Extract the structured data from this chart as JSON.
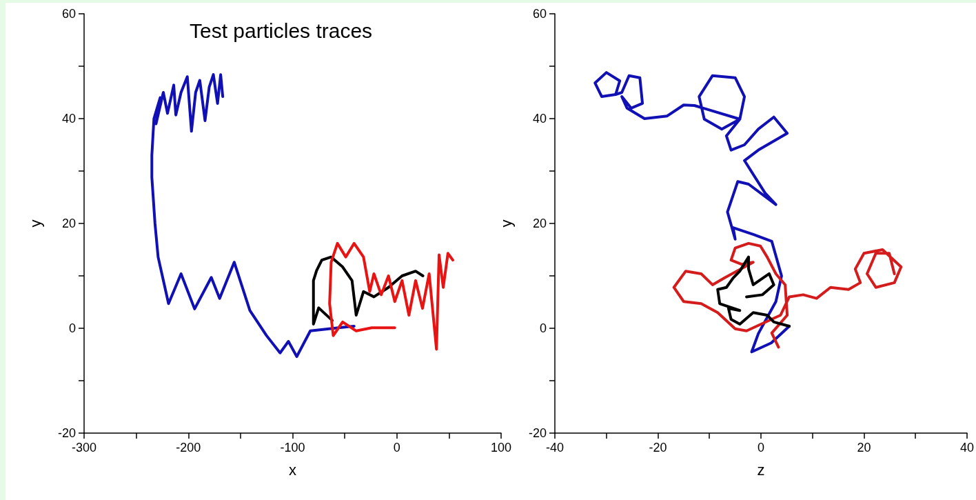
{
  "chart_data": [
    {
      "type": "line",
      "title": "Test particles traces",
      "xlabel": "x",
      "ylabel": "y",
      "xlim": [
        -300,
        100
      ],
      "ylim": [
        -20,
        60
      ],
      "xticks": [
        -300,
        {
          "value": -250,
          "label": null
        },
        -200,
        {
          "value": -150,
          "label": null
        },
        -100,
        {
          "value": -50,
          "label": null
        },
        0,
        {
          "value": 50,
          "label": null
        },
        100
      ],
      "yticks": [
        -20,
        {
          "value": -10,
          "label": null
        },
        0,
        {
          "value": 10,
          "label": null
        },
        20,
        {
          "value": 30,
          "label": null
        },
        40,
        {
          "value": 50,
          "label": null
        },
        60
      ],
      "series": [
        {
          "color": "#1010b4",
          "x": [
            -41,
            -65,
            -83,
            -96,
            -104,
            -112,
            -125,
            -141,
            -156,
            -170,
            -178,
            -194,
            -207,
            -219,
            -229,
            -232,
            -235,
            -235,
            -233,
            -227,
            -231,
            -224,
            -220,
            -214,
            -212,
            -207,
            -201,
            -197,
            -193,
            -189,
            -184,
            -180,
            -176,
            -172,
            -169,
            -167
          ],
          "values": [
            0.4,
            -0.1,
            -0.5,
            -5.4,
            -2.5,
            -4.7,
            -1.4,
            3.4,
            12.6,
            5.7,
            9.7,
            3.7,
            10.4,
            4.7,
            13.6,
            20,
            28.8,
            33,
            40,
            44,
            39,
            45,
            41,
            46.4,
            40.7,
            45,
            48,
            37.6,
            45,
            47.3,
            39.6,
            46,
            48.4,
            42.9,
            48.4,
            44.2
          ]
        },
        {
          "color": "#000000",
          "x": [
            -62,
            -75,
            -80,
            -80,
            -77,
            -72,
            -63,
            -52,
            -43,
            -39,
            -32,
            -22,
            -8,
            5,
            18,
            25
          ],
          "values": [
            1.5,
            3.9,
            0.8,
            9.1,
            11,
            13,
            13.6,
            11.7,
            9.1,
            2.5,
            7,
            6,
            7.8,
            10,
            10.9,
            10
          ]
        },
        {
          "color": "#e81414",
          "x": [
            -2,
            -24,
            -39,
            -52,
            -61,
            -64.5,
            -63,
            -57,
            -49,
            -41,
            -32,
            -26,
            -22,
            -15,
            -8,
            -2,
            5,
            11.6,
            18,
            24.6,
            31,
            38,
            40.5,
            44.5,
            49,
            53.7
          ],
          "values": [
            0.1,
            0.1,
            -0.5,
            1.2,
            -1.4,
            4.7,
            12.6,
            16.2,
            13.6,
            16.2,
            13.6,
            7,
            10.4,
            6.4,
            10,
            5.1,
            9.1,
            2.5,
            9.1,
            3.8,
            10.4,
            -4,
            14,
            7.8,
            14.3,
            13
          ]
        }
      ]
    },
    {
      "type": "line",
      "xlabel": "z",
      "ylabel": "y",
      "xlim": [
        -40,
        40
      ],
      "ylim": [
        -20,
        60
      ],
      "xticks": [
        -40,
        {
          "value": -30,
          "label": null
        },
        -20,
        {
          "value": -10,
          "label": null
        },
        0,
        {
          "value": 10,
          "label": null
        },
        20,
        {
          "value": 30,
          "label": null
        },
        40
      ],
      "yticks": [
        -20,
        {
          "value": -10,
          "label": null
        },
        0,
        {
          "value": 10,
          "label": null
        },
        20,
        {
          "value": 30,
          "label": null
        },
        40,
        {
          "value": 50,
          "label": null
        },
        60
      ],
      "series": [
        {
          "color": "#1010b4",
          "x": [
            5.5,
            2,
            -1.8,
            -0.5,
            2.9,
            4,
            2.1,
            -1.5,
            -5.4,
            -5,
            -6.5,
            -4.5,
            -2.4,
            2.9,
            0.8,
            -3.2,
            -0.5,
            5.1,
            2.5,
            -0.5,
            -3.2,
            -5.8,
            -6.7,
            -4.1,
            -3.2,
            -5,
            -9.4,
            -12,
            -11,
            -7.6,
            -4.1,
            -12.9,
            -15,
            -18.2,
            -22.6,
            -26,
            -27,
            -25.2,
            -23,
            -23.5,
            -25.6,
            -27,
            -28.2,
            -30.9,
            -32.2,
            -30,
            -27.4,
            -28.2
          ],
          "values": [
            0.4,
            -2.8,
            -4.5,
            -1,
            5.1,
            10,
            16.6,
            17.9,
            19.2,
            17,
            22.2,
            28,
            27.5,
            23.6,
            25.8,
            32,
            34,
            37.2,
            40.3,
            38,
            35,
            34,
            36.7,
            39.9,
            44.2,
            47.8,
            48.2,
            44.2,
            39.9,
            38,
            39.9,
            42.5,
            42.6,
            40.5,
            40,
            42,
            44.2,
            42,
            42.9,
            47.8,
            48.2,
            45,
            44.6,
            44.2,
            46.8,
            48.8,
            47.2,
            44.6
          ]
        },
        {
          "color": "#d41c1c",
          "x": [
            3.4,
            2.1,
            5.1,
            4.7,
            2.9,
            1.2,
            -0.1,
            -2.4,
            -5,
            -5.8,
            -3.7,
            -1.5,
            -7.1,
            -9.4,
            -11.6,
            -14.6,
            -16.9,
            -15,
            -11.6,
            -8.4,
            -5,
            -2.8,
            3.8,
            5.5,
            8.2,
            10.8,
            13.5,
            17,
            19.3,
            18.3,
            20,
            23.6,
            27.2,
            25.9,
            22.3,
            20.6,
            22.3,
            24.9,
            25.9
          ],
          "values": [
            -3.6,
            -0.9,
            2.5,
            8.3,
            10.4,
            13.6,
            15.7,
            16.2,
            15.3,
            13,
            12.2,
            12.6,
            9.6,
            8.3,
            10.4,
            10.9,
            7.8,
            5.1,
            4.7,
            3,
            -0.1,
            -0.5,
            2.5,
            6,
            6.4,
            5.7,
            7.8,
            7.4,
            8.7,
            11.3,
            14.3,
            15,
            11.7,
            8.7,
            7.8,
            10.4,
            14.3,
            14.3,
            10.4
          ]
        },
        {
          "color": "#000000",
          "x": [
            5.5,
            2.5,
            1.2,
            -1.5,
            -4.1,
            -5.8,
            -6.3,
            -4.1,
            -8,
            -8.4,
            -6.7,
            -5.4,
            -4.1,
            -2.4,
            -2.4,
            -1.5,
            1.6,
            2.5,
            0.3,
            -2.8
          ],
          "values": [
            0.4,
            1.2,
            2.5,
            3,
            0.8,
            1.7,
            3.8,
            3.4,
            4.7,
            7.4,
            7.8,
            9.6,
            10.9,
            13.6,
            11.3,
            8.3,
            10.4,
            8.3,
            6.4,
            6
          ]
        }
      ]
    }
  ]
}
